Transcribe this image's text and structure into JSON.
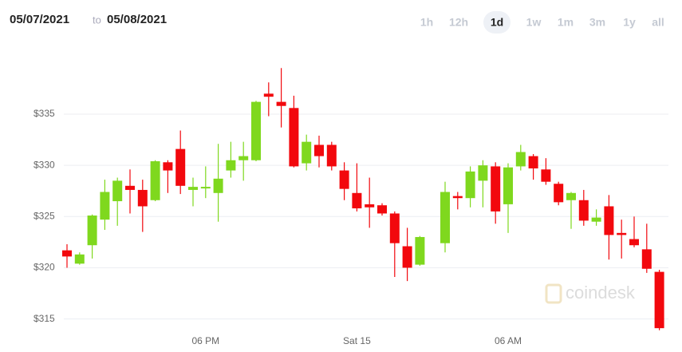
{
  "header": {
    "from": "05/07/2021",
    "to_word": "to",
    "to": "05/08/2021",
    "ranges": [
      "1h",
      "12h",
      "1d",
      "1w",
      "1m",
      "3m",
      "1y",
      "all"
    ],
    "selected_range": "1d"
  },
  "watermark": "coindesk",
  "chart_data": {
    "type": "candlestick",
    "categories": [
      null,
      null,
      null,
      null,
      null,
      null,
      null,
      null,
      null,
      null,
      null,
      "06 PM",
      null,
      null,
      null,
      null,
      null,
      null,
      null,
      null,
      null,
      null,
      null,
      "Sat 15",
      null,
      null,
      null,
      null,
      null,
      null,
      null,
      null,
      null,
      null,
      null,
      "06 AM",
      null,
      null,
      null,
      null,
      null,
      null,
      null,
      null,
      null,
      null,
      null,
      null
    ],
    "open": [
      321.7,
      320.4,
      322.2,
      324.7,
      326.5,
      328.0,
      327.6,
      326.6,
      330.3,
      331.6,
      327.6,
      327.8,
      327.3,
      329.5,
      330.5,
      330.5,
      337.0,
      336.2,
      335.6,
      330.2,
      332.0,
      332.0,
      329.5,
      327.3,
      326.2,
      326.1,
      325.3,
      322.1,
      320.3,
      null,
      322.4,
      327.0,
      326.8,
      328.5,
      329.9,
      326.2,
      329.9,
      330.9,
      329.6,
      328.2,
      326.6,
      326.6,
      324.5,
      326.0,
      323.4,
      322.8,
      321.8,
      319.6
    ],
    "high": [
      322.3,
      321.5,
      325.2,
      328.6,
      328.8,
      329.6,
      328.6,
      330.5,
      330.5,
      333.4,
      328.8,
      329.9,
      332.1,
      332.3,
      332.3,
      336.3,
      338.1,
      339.5,
      336.8,
      333.0,
      332.9,
      332.3,
      330.3,
      330.2,
      328.8,
      326.3,
      325.5,
      323.9,
      323.1,
      null,
      328.4,
      327.4,
      329.9,
      330.5,
      330.3,
      330.2,
      332.0,
      331.1,
      330.7,
      328.4,
      327.4,
      327.6,
      325.7,
      327.1,
      324.7,
      325.0,
      324.3,
      319.8
    ],
    "low": [
      320.0,
      320.3,
      320.9,
      323.7,
      324.1,
      325.3,
      323.5,
      326.5,
      327.3,
      327.2,
      326.0,
      326.8,
      324.5,
      328.8,
      328.5,
      330.4,
      334.8,
      333.7,
      329.8,
      329.5,
      329.8,
      329.5,
      326.6,
      325.5,
      323.9,
      325.1,
      319.1,
      318.7,
      320.2,
      null,
      321.5,
      325.7,
      325.9,
      325.9,
      324.3,
      323.4,
      329.5,
      328.6,
      328.1,
      326.1,
      323.8,
      324.1,
      324.1,
      320.8,
      320.9,
      322.0,
      319.5,
      313.9
    ],
    "close": [
      321.1,
      321.3,
      325.1,
      327.4,
      328.5,
      327.6,
      326.0,
      330.4,
      329.5,
      328.0,
      327.9,
      327.9,
      328.7,
      330.5,
      330.9,
      336.2,
      336.7,
      335.8,
      329.9,
      332.3,
      330.9,
      329.9,
      327.7,
      325.8,
      325.9,
      325.3,
      322.4,
      320.0,
      323.0,
      null,
      327.4,
      326.8,
      329.4,
      330.0,
      325.5,
      329.8,
      331.3,
      329.7,
      328.4,
      326.4,
      327.3,
      324.6,
      324.9,
      323.2,
      323.2,
      322.2,
      319.9,
      314.1
    ],
    "up_color": "#7fd81e",
    "down_color": "#f2080d",
    "ylim": [
      313.8,
      340.3
    ],
    "yticks": [
      {
        "value": 315,
        "label": "$315"
      },
      {
        "value": 320,
        "label": "$320"
      },
      {
        "value": 325,
        "label": "$325"
      },
      {
        "value": 330,
        "label": "$330"
      },
      {
        "value": 335,
        "label": "$335"
      }
    ],
    "grid": true
  }
}
